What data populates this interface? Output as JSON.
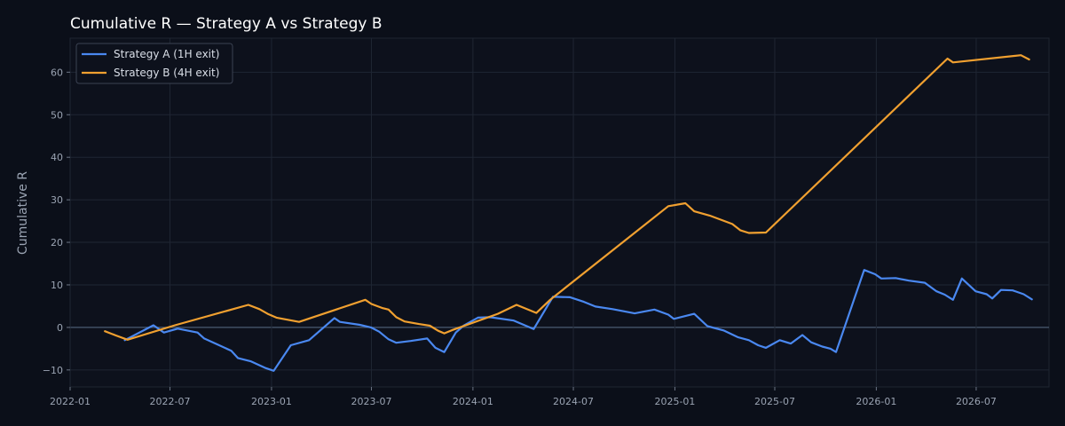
{
  "chart_data": {
    "type": "line",
    "title": "Cumulative R — Strategy A vs Strategy B",
    "xlabel": "",
    "ylabel": "Cumulative R",
    "xlim": [
      "2022-01-01",
      "2026-11-10"
    ],
    "ylim": [
      -14,
      68
    ],
    "x_ticks": [
      "2022-01",
      "2022-07",
      "2023-01",
      "2023-07",
      "2024-01",
      "2024-07",
      "2025-01",
      "2025-07",
      "2026-01",
      "2026-07"
    ],
    "y_ticks": [
      -10,
      0,
      10,
      20,
      30,
      40,
      50,
      60
    ],
    "grid": true,
    "legend_position": "top-left",
    "background_color": "#0b0f19",
    "plot_background_color": "#0d111c",
    "grid_color": "#1f2633",
    "zero_line_color": "#4a5a72",
    "series": [
      {
        "name": "Strategy A (1H exit)",
        "color": "#4a88f0",
        "points": [
          [
            "2022-04-10",
            -3.0
          ],
          [
            "2022-06-01",
            0.5
          ],
          [
            "2022-06-20",
            -1.2
          ],
          [
            "2022-07-15",
            -0.3
          ],
          [
            "2022-08-20",
            -1.2
          ],
          [
            "2022-09-01",
            -2.6
          ],
          [
            "2022-09-25",
            -4.0
          ],
          [
            "2022-10-20",
            -5.5
          ],
          [
            "2022-11-01",
            -7.2
          ],
          [
            "2022-11-25",
            -8.0
          ],
          [
            "2022-12-20",
            -9.5
          ],
          [
            "2023-01-05",
            -10.2
          ],
          [
            "2023-02-05",
            -4.2
          ],
          [
            "2023-03-10",
            -3.0
          ],
          [
            "2023-04-25",
            2.2
          ],
          [
            "2023-05-05",
            1.3
          ],
          [
            "2023-06-10",
            0.6
          ],
          [
            "2023-06-30",
            0.0
          ],
          [
            "2023-07-15",
            -1.0
          ],
          [
            "2023-08-01",
            -2.8
          ],
          [
            "2023-08-15",
            -3.6
          ],
          [
            "2023-09-10",
            -3.2
          ],
          [
            "2023-10-10",
            -2.6
          ],
          [
            "2023-10-25",
            -4.8
          ],
          [
            "2023-11-10",
            -5.8
          ],
          [
            "2023-12-01",
            -1.2
          ],
          [
            "2023-12-15",
            0.4
          ],
          [
            "2024-01-10",
            2.3
          ],
          [
            "2024-02-01",
            2.4
          ],
          [
            "2024-03-15",
            1.6
          ],
          [
            "2024-04-20",
            -0.4
          ],
          [
            "2024-05-25",
            7.2
          ],
          [
            "2024-06-25",
            7.1
          ],
          [
            "2024-07-20",
            6.0
          ],
          [
            "2024-08-10",
            4.9
          ],
          [
            "2024-09-10",
            4.3
          ],
          [
            "2024-10-20",
            3.3
          ],
          [
            "2024-11-25",
            4.2
          ],
          [
            "2024-12-20",
            3.0
          ],
          [
            "2024-12-30",
            2.0
          ],
          [
            "2025-02-05",
            3.2
          ],
          [
            "2025-03-01",
            0.3
          ],
          [
            "2025-03-30",
            -0.7
          ],
          [
            "2025-04-25",
            -2.3
          ],
          [
            "2025-05-15",
            -3.0
          ],
          [
            "2025-06-01",
            -4.2
          ],
          [
            "2025-06-15",
            -4.8
          ],
          [
            "2025-07-10",
            -3.0
          ],
          [
            "2025-07-30",
            -3.8
          ],
          [
            "2025-08-20",
            -1.8
          ],
          [
            "2025-09-05",
            -3.5
          ],
          [
            "2025-09-25",
            -4.5
          ],
          [
            "2025-10-10",
            -5.0
          ],
          [
            "2025-10-20",
            -5.8
          ],
          [
            "2025-12-10",
            13.5
          ],
          [
            "2025-12-30",
            12.5
          ],
          [
            "2026-01-10",
            11.5
          ],
          [
            "2026-02-05",
            11.6
          ],
          [
            "2026-03-01",
            11.0
          ],
          [
            "2026-03-30",
            10.5
          ],
          [
            "2026-04-20",
            8.5
          ],
          [
            "2026-05-05",
            7.7
          ],
          [
            "2026-05-20",
            6.5
          ],
          [
            "2026-06-05",
            11.5
          ],
          [
            "2026-06-30",
            8.5
          ],
          [
            "2026-07-20",
            7.8
          ],
          [
            "2026-07-30",
            6.8
          ],
          [
            "2026-08-15",
            8.8
          ],
          [
            "2026-09-05",
            8.7
          ],
          [
            "2026-09-25",
            7.8
          ],
          [
            "2026-10-10",
            6.6
          ]
        ]
      },
      {
        "name": "Strategy B (4H exit)",
        "color": "#f0a030",
        "points": [
          [
            "2022-03-05",
            -0.9
          ],
          [
            "2022-03-25",
            -1.9
          ],
          [
            "2022-04-15",
            -2.9
          ],
          [
            "2022-07-10",
            0.5
          ],
          [
            "2022-11-20",
            5.3
          ],
          [
            "2022-12-10",
            4.3
          ],
          [
            "2022-12-25",
            3.2
          ],
          [
            "2023-01-10",
            2.3
          ],
          [
            "2023-02-20",
            1.3
          ],
          [
            "2023-06-20",
            6.5
          ],
          [
            "2023-07-01",
            5.5
          ],
          [
            "2023-07-20",
            4.6
          ],
          [
            "2023-08-01",
            4.2
          ],
          [
            "2023-08-15",
            2.4
          ],
          [
            "2023-08-30",
            1.4
          ],
          [
            "2023-09-25",
            0.8
          ],
          [
            "2023-10-15",
            0.4
          ],
          [
            "2023-10-30",
            -0.8
          ],
          [
            "2023-11-10",
            -1.4
          ],
          [
            "2023-11-25",
            -0.6
          ],
          [
            "2024-02-15",
            3.2
          ],
          [
            "2024-03-20",
            5.3
          ],
          [
            "2024-04-25",
            3.4
          ],
          [
            "2024-05-20",
            6.5
          ],
          [
            "2024-12-20",
            28.5
          ],
          [
            "2025-01-20",
            29.2
          ],
          [
            "2025-02-05",
            27.3
          ],
          [
            "2025-03-05",
            26.3
          ],
          [
            "2025-04-15",
            24.3
          ],
          [
            "2025-04-30",
            22.8
          ],
          [
            "2025-05-15",
            22.2
          ],
          [
            "2025-06-15",
            22.3
          ],
          [
            "2026-05-10",
            63.2
          ],
          [
            "2026-05-20",
            62.3
          ],
          [
            "2026-09-20",
            64.0
          ],
          [
            "2026-10-05",
            63.0
          ]
        ]
      }
    ]
  }
}
